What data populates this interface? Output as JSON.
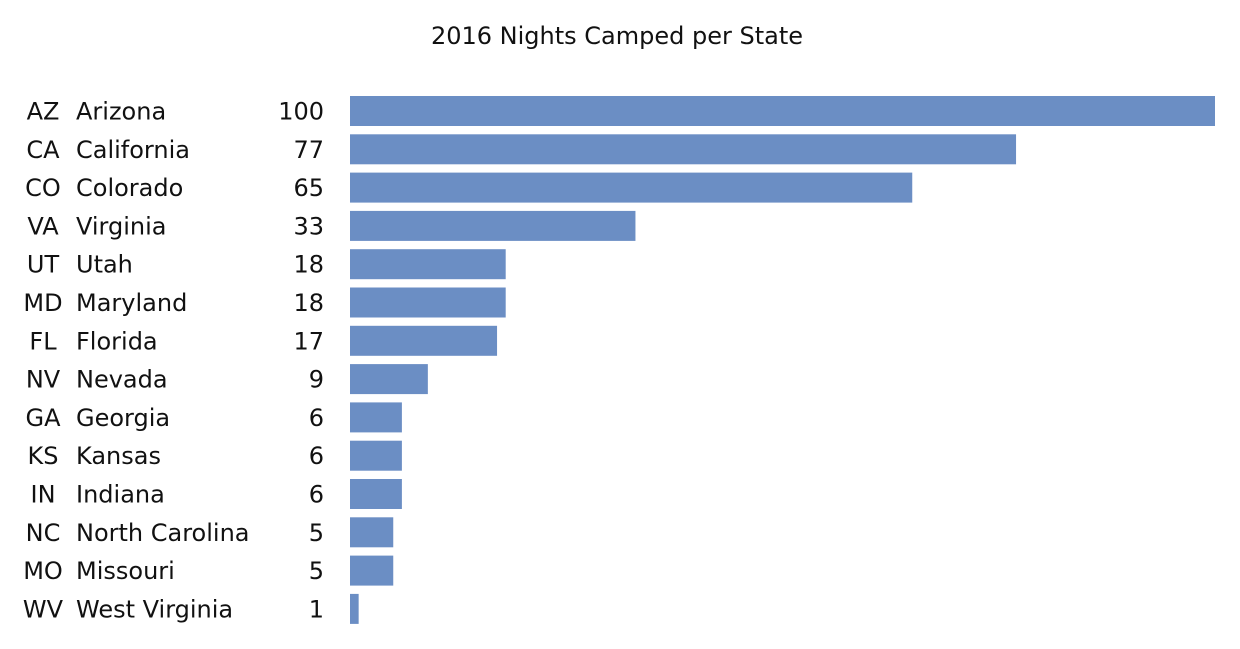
{
  "chart_data": {
    "type": "bar",
    "orientation": "horizontal",
    "title": "2016 Nights Camped per State",
    "xlabel": "",
    "ylabel": "",
    "grid": false,
    "bar_color": "#6b8ec4",
    "xlim": [
      0,
      100
    ],
    "rows": [
      {
        "code": "AZ",
        "state": "Arizona",
        "value": 100
      },
      {
        "code": "CA",
        "state": "California",
        "value": 77
      },
      {
        "code": "CO",
        "state": "Colorado",
        "value": 65
      },
      {
        "code": "VA",
        "state": "Virginia",
        "value": 33
      },
      {
        "code": "UT",
        "state": "Utah",
        "value": 18
      },
      {
        "code": "MD",
        "state": "Maryland",
        "value": 18
      },
      {
        "code": "FL",
        "state": "Florida",
        "value": 17
      },
      {
        "code": "NV",
        "state": "Nevada",
        "value": 9
      },
      {
        "code": "GA",
        "state": "Georgia",
        "value": 6
      },
      {
        "code": "KS",
        "state": "Kansas",
        "value": 6
      },
      {
        "code": "IN",
        "state": "Indiana",
        "value": 6
      },
      {
        "code": "NC",
        "state": "North Carolina",
        "value": 5
      },
      {
        "code": "MO",
        "state": "Missouri",
        "value": 5
      },
      {
        "code": "WV",
        "state": "West Virginia",
        "value": 1
      }
    ]
  }
}
